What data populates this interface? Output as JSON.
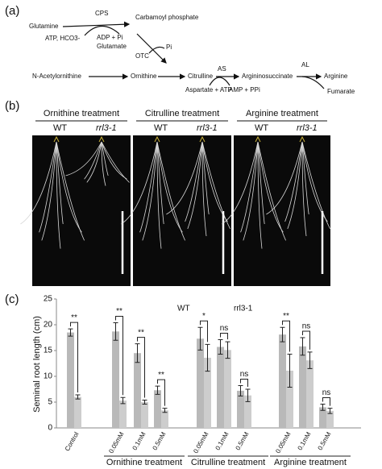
{
  "panel_a": {
    "label": "(a)",
    "nodes": [
      "Glutamine",
      "Carbamoyl phosphate",
      "N-Acetylornithine",
      "Ornithine",
      "Citrulline",
      "Argininosuccinate",
      "Arginine",
      "Fumarate"
    ],
    "enzymes": [
      "CPS",
      "OTC",
      "AS",
      "AL"
    ],
    "cofactors": [
      "ATP, HCO3-",
      "ADP + Pi",
      "Glutamate",
      "Pi",
      "Aspartate + ATP",
      "AMP + PPi"
    ]
  },
  "panel_b": {
    "label": "(b)",
    "groups": [
      {
        "title": "Ornithine treatment",
        "wt": "WT",
        "mutant": "rrl3-1"
      },
      {
        "title": "Citrulline treatment",
        "wt": "WT",
        "mutant": "rrl3-1"
      },
      {
        "title": "Arginine treatment",
        "wt": "WT",
        "mutant": "rrl3-1"
      }
    ]
  },
  "panel_c": {
    "label": "(c)"
  },
  "chart_data": {
    "type": "bar",
    "y_label": "Seminal root length (cm)",
    "categories": [
      "Control",
      "0.05mM",
      "0.1mM",
      "0.5mM",
      "0.05mM",
      "0.1mM",
      "0.5mM",
      "0.05mM",
      "0.1mM",
      "0.5mM"
    ],
    "groups": [
      {
        "name": "Ornithine treatment",
        "members": [
          1,
          2,
          3
        ]
      },
      {
        "name": "Citrulline treatment",
        "members": [
          4,
          5,
          6
        ]
      },
      {
        "name": "Arginine treatment",
        "members": [
          7,
          8,
          9
        ]
      }
    ],
    "series": [
      {
        "name": "WT",
        "color": "#b9b9b9",
        "values": [
          18.5,
          18.7,
          14.5,
          7.3,
          17.3,
          15.7,
          7.2,
          18.1,
          15.8,
          4.0
        ],
        "errors": [
          0.7,
          1.7,
          1.8,
          0.8,
          2.2,
          1.4,
          1.0,
          1.4,
          1.7,
          0.6
        ]
      },
      {
        "name": "rrl3-1",
        "color": "#cdcdcd",
        "values": [
          6.0,
          5.3,
          5.0,
          3.4,
          13.6,
          15.1,
          6.3,
          11.1,
          13.1,
          3.3
        ],
        "errors": [
          0.4,
          0.6,
          0.4,
          0.4,
          2.6,
          1.6,
          1.2,
          3.2,
          1.6,
          0.5
        ]
      }
    ],
    "significance": [
      "**",
      "**",
      "**",
      "**",
      "*",
      "ns",
      "ns",
      "**",
      "ns",
      "ns"
    ],
    "ylim": [
      0,
      25
    ],
    "yticks": [
      0,
      5,
      10,
      15,
      20,
      25
    ]
  }
}
